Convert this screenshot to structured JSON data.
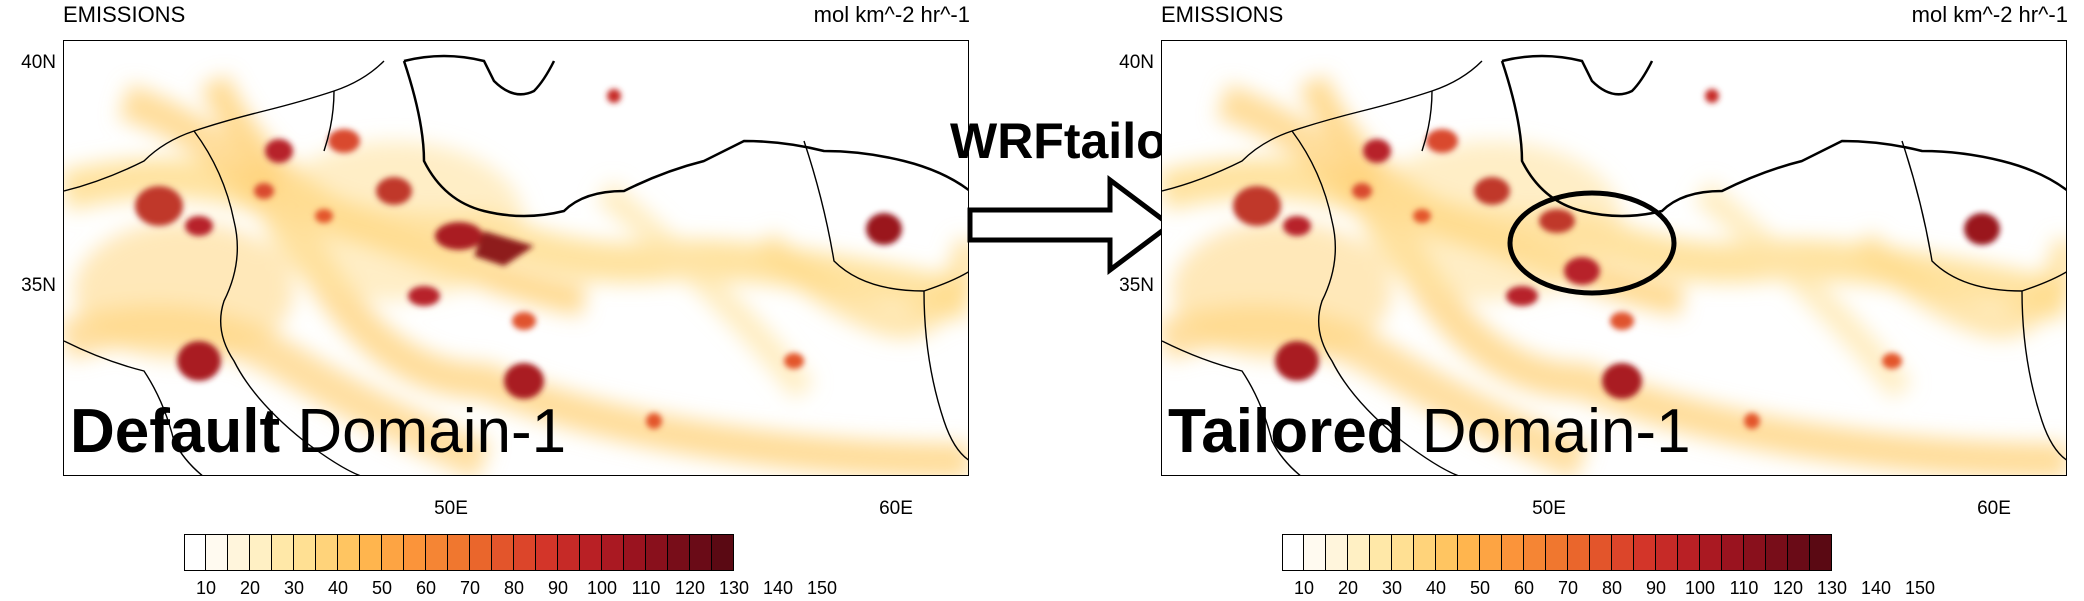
{
  "figure": {
    "arrow_label": "WRFtailor",
    "colorbar": {
      "colors": [
        "#ffffff",
        "#fffaf0",
        "#fff5dc",
        "#fff0c4",
        "#ffe8a8",
        "#ffe093",
        "#ffd37a",
        "#ffc561",
        "#ffb54e",
        "#fda443",
        "#fb943a",
        "#f58534",
        "#f0772f",
        "#ea662c",
        "#e3552b",
        "#dc452a",
        "#d33529",
        "#c62a27",
        "#b92025",
        "#aa1922",
        "#9a131f",
        "#89101c",
        "#780d19",
        "#6a0b17",
        "#5a0913"
      ],
      "tick_labels": [
        "10",
        "20",
        "30",
        "40",
        "50",
        "60",
        "70",
        "80",
        "90",
        "100",
        "110",
        "120",
        "130",
        "140",
        "150"
      ]
    }
  },
  "panels": [
    {
      "id": "left",
      "title_left": "EMISSIONS",
      "title_right": "mol km^-2 hr^-1",
      "lat_labels": [
        "40N",
        "35N"
      ],
      "lon_labels": [
        "50E",
        "60E"
      ],
      "domain_bold": "Default",
      "domain_normal": " Domain-1",
      "highlight_ellipse": false
    },
    {
      "id": "right",
      "title_left": "EMISSIONS",
      "title_right": "mol km^-2 hr^-1",
      "lat_labels": [
        "40N",
        "35N"
      ],
      "lon_labels": [
        "50E",
        "60E"
      ],
      "domain_bold": "Tailored",
      "domain_normal": " Domain-1",
      "highlight_ellipse": true
    }
  ]
}
